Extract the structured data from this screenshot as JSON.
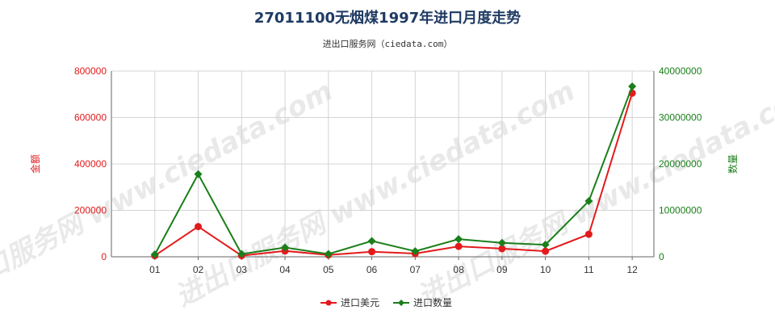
{
  "chart_data": {
    "type": "line",
    "title": "27011100无烟煤1997年进口月度走势",
    "subtitle": "进出口服务网（ciedata.com）",
    "watermark": "进出口服务网 www.ciedata.com",
    "categories": [
      "01",
      "02",
      "03",
      "04",
      "05",
      "06",
      "07",
      "08",
      "09",
      "10",
      "11",
      "12"
    ],
    "y_left": {
      "label": "金额",
      "range": [
        0,
        800000
      ],
      "ticks": [
        0,
        200000,
        400000,
        600000,
        800000
      ],
      "tick_labels": [
        "0",
        "200000",
        "400000",
        "600000",
        "800000"
      ],
      "color": "#e31a1c"
    },
    "y_right": {
      "label": "数量",
      "range": [
        0,
        40000000
      ],
      "ticks": [
        0,
        10000000,
        20000000,
        30000000,
        40000000
      ],
      "tick_labels": [
        "0",
        "10000000",
        "20000000",
        "30000000",
        "40000000"
      ],
      "color": "#1a7f1a"
    },
    "series": [
      {
        "name": "进口美元",
        "axis": "left",
        "color": "#e31a1c",
        "marker": "circle",
        "values": [
          5000,
          130000,
          5000,
          25000,
          8000,
          22000,
          14000,
          45000,
          35000,
          24000,
          97000,
          705000
        ]
      },
      {
        "name": "进口数量",
        "axis": "right",
        "color": "#1a7f1a",
        "marker": "diamond",
        "values": [
          500000,
          17800000,
          600000,
          2000000,
          600000,
          3400000,
          1200000,
          3800000,
          3000000,
          2600000,
          12000000,
          36700000
        ]
      }
    ],
    "grid": true,
    "legend_position": "bottom-center"
  }
}
